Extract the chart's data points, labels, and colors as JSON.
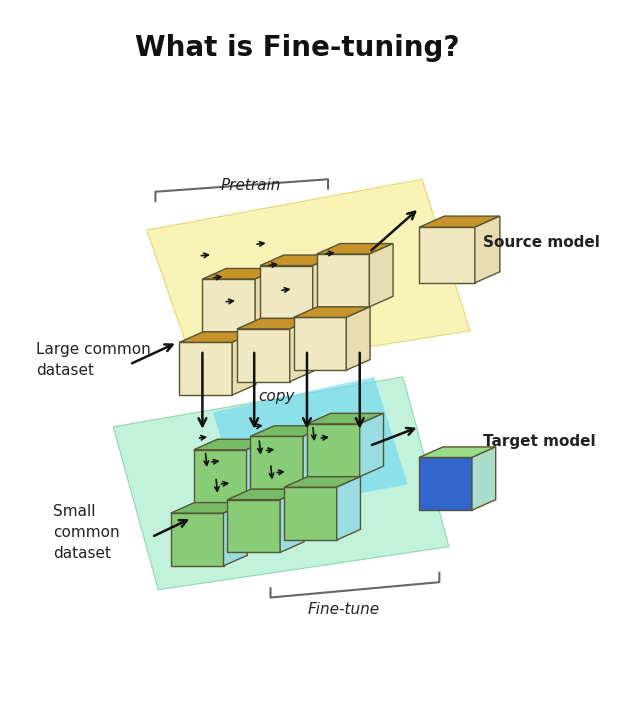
{
  "title": "What is Fine-tuning?",
  "title_fontsize": 20,
  "title_fontweight": "bold",
  "bg_color": "#ffffff",
  "pretrain_label": "Pretrain",
  "finetune_label": "Fine-tune",
  "copy_label": "copy",
  "source_label": "Source model",
  "target_label": "Target model",
  "large_dataset_label": "Large common\ndataset",
  "small_dataset_label": "Small\ncommon\ndataset",
  "yellow_plane_color": "#f7f0a0",
  "yellow_plane_alpha": 0.75,
  "green_plane_color": "#90e8c0",
  "green_plane_alpha": 0.55,
  "blue_patch_color": "#70d8f0",
  "blue_patch_alpha": 0.65,
  "cube_y_front": "#f0e8c0",
  "cube_y_top": "#c8922a",
  "cube_y_side": "#e8ddb0",
  "cube_g_front": "#88cc77",
  "cube_g_top": "#77bb66",
  "cube_g_side": "#99dde0",
  "cube_blue_front": "#4477dd",
  "cube_blue_top": "#5588ee",
  "cube_blue_side": "#66aaff",
  "cube_teal_side": "#55bbcc",
  "arrow_color": "#111111",
  "bracket_color": "#666666",
  "src_cube_front": "#f0e8c0",
  "src_cube_top": "#c8922a",
  "src_cube_side": "#e8ddb0",
  "tgt_blue_front": "#3366cc",
  "tgt_blue_top": "#4477dd",
  "tgt_blue_side": "#5599ff",
  "tgt_green_front": "#88cc77",
  "tgt_green_top": "#99dd88",
  "tgt_green_side": "#aaddcc"
}
